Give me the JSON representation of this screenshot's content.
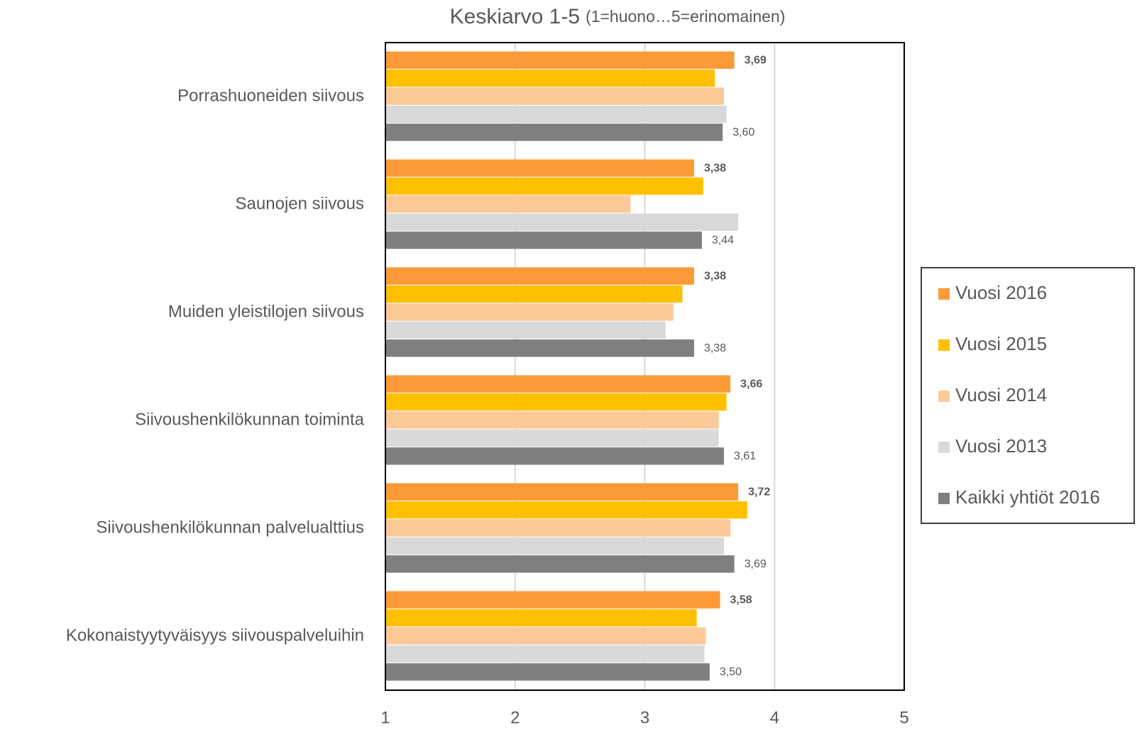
{
  "chart_data": {
    "type": "hbar",
    "title": "Keskiarvo 1-5",
    "subtitle": "(1=huono…5=erinomainen)",
    "categories": [
      "Porrashuoneiden siivous",
      "Saunojen siivous",
      "Muiden yleistilojen siivous",
      "Siivoushenkilökunnan toiminta",
      "Siivoushenkilökunnan palvelualttius",
      "Kokonaistyytyväisyys siivouspalveluihin"
    ],
    "series": [
      {
        "name": "Vuosi 2016",
        "color": "#fd9a38",
        "values": [
          3.69,
          3.38,
          3.38,
          3.66,
          3.72,
          3.58
        ],
        "value_labels": [
          "3,69",
          "3,38",
          "3,38",
          "3,66",
          "3,72",
          "3,58"
        ]
      },
      {
        "name": "Vuosi 2015",
        "color": "#ffc000",
        "values": [
          3.54,
          3.45,
          3.29,
          3.63,
          3.79,
          3.4
        ]
      },
      {
        "name": "Vuosi 2014",
        "color": "#fdc999",
        "values": [
          3.61,
          2.89,
          3.22,
          3.57,
          3.66,
          3.47
        ]
      },
      {
        "name": "Vuosi 2013",
        "color": "#d9d9d9",
        "values": [
          3.63,
          3.72,
          3.16,
          3.57,
          3.61,
          3.46
        ]
      },
      {
        "name": "Kaikki yhtiöt 2016",
        "color": "#7f7f7f",
        "values": [
          3.6,
          3.44,
          3.38,
          3.61,
          3.69,
          3.5
        ],
        "value_labels": [
          "3,60",
          "3,44",
          "3,38",
          "3,61",
          "3,69",
          "3,50"
        ]
      }
    ],
    "xlim": [
      1,
      5
    ],
    "xticks": [
      1,
      2,
      3,
      4,
      5
    ],
    "grid": true,
    "legend": "right"
  }
}
